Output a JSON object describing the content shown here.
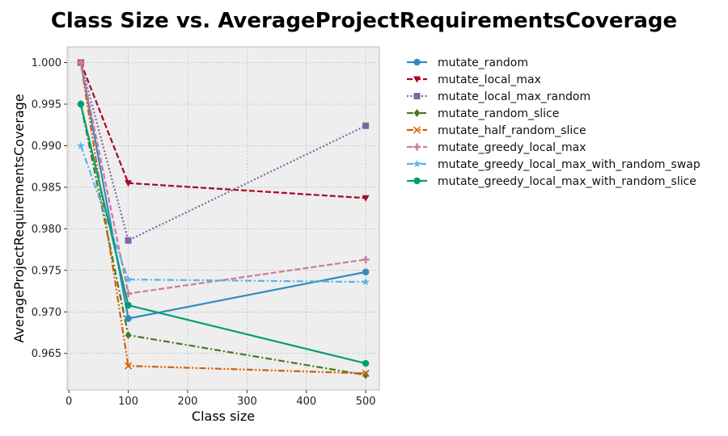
{
  "chart_data": {
    "type": "line",
    "title": "Class Size vs. AverageProjectRequirementsCoverage",
    "xlabel": "Class size",
    "ylabel": "AverageProjectRequirementsCoverage",
    "x": [
      20,
      100,
      500
    ],
    "xlim": [
      -3,
      523
    ],
    "ylim": [
      0.9606,
      1.0019
    ],
    "xticks": [
      0,
      100,
      200,
      300,
      400,
      500
    ],
    "yticks": [
      0.965,
      0.97,
      0.975,
      0.98,
      0.985,
      0.99,
      0.995,
      1.0
    ],
    "grid": true,
    "legend_position": "outside-right",
    "series": [
      {
        "name": "mutate_random",
        "values": [
          1.0,
          0.9692,
          0.9748
        ],
        "color": "#348abd",
        "dash": "solid",
        "marker": "circle"
      },
      {
        "name": "mutate_local_max",
        "values": [
          1.0,
          0.9855,
          0.9837
        ],
        "color": "#a60628",
        "dash": "dashed",
        "marker": "triangle-down"
      },
      {
        "name": "mutate_local_max_random",
        "values": [
          1.0,
          0.9786,
          0.9924
        ],
        "color": "#7a68a6",
        "dash": "dotted",
        "marker": "square"
      },
      {
        "name": "mutate_random_slice",
        "values": [
          0.995,
          0.9672,
          0.9624
        ],
        "color": "#467821",
        "dash": "dashdot",
        "marker": "diamond"
      },
      {
        "name": "mutate_half_random_slice",
        "values": [
          1.0,
          0.9635,
          0.9626
        ],
        "color": "#d55e00",
        "dash": "dashdotdot",
        "marker": "x"
      },
      {
        "name": "mutate_greedy_local_max",
        "values": [
          1.0,
          0.9722,
          0.9763
        ],
        "color": "#cc79a7",
        "dash": "dashed",
        "marker": "plus"
      },
      {
        "name": "mutate_greedy_local_max_with_random_swap",
        "values": [
          0.99,
          0.9739,
          0.9736
        ],
        "color": "#56b4e9",
        "dash": "dashdot",
        "marker": "star"
      },
      {
        "name": "mutate_greedy_local_max_with_random_slice",
        "values": [
          0.995,
          0.9708,
          0.9638
        ],
        "color": "#009e73",
        "dash": "solid",
        "marker": "circle"
      }
    ]
  }
}
